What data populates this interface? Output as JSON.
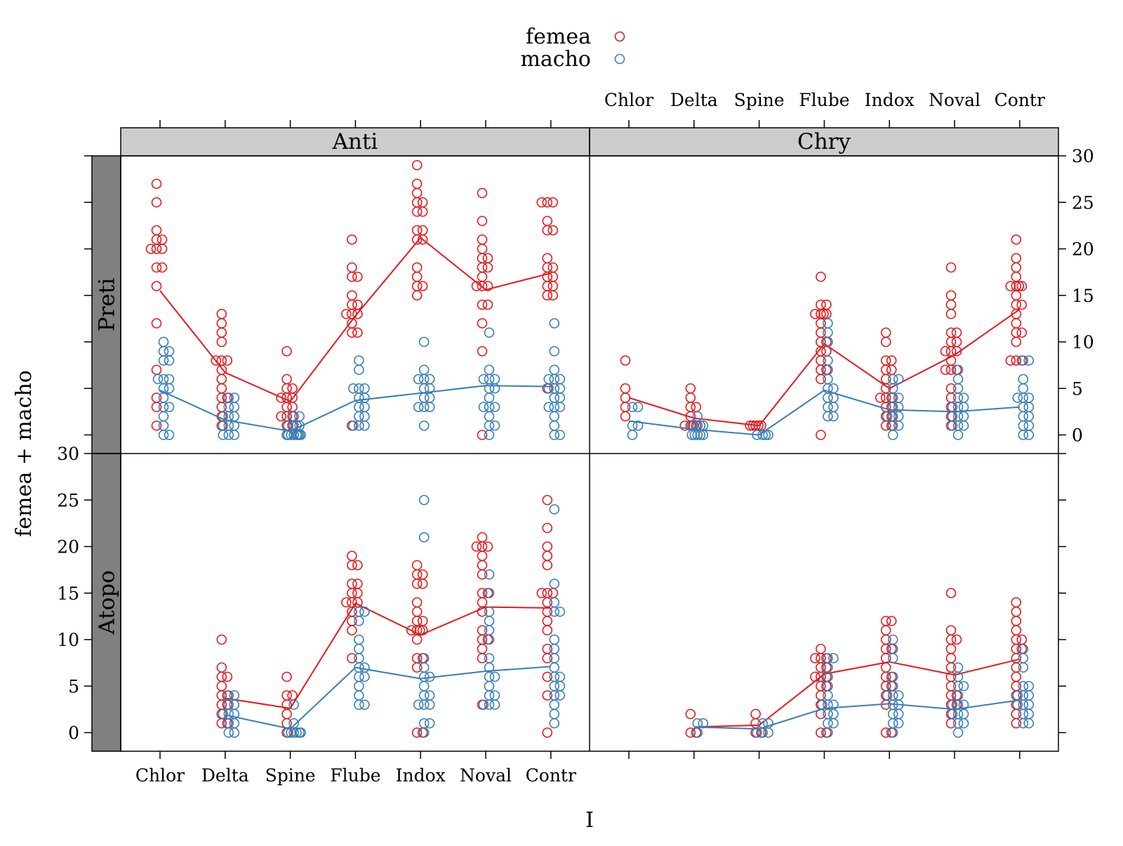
{
  "chart_data": {
    "type": "scatter",
    "xlabel": "I",
    "ylabel": "femea + macho",
    "categories": [
      "Chlor",
      "Delta",
      "Spine",
      "Flube",
      "Indox",
      "Noval",
      "Contr"
    ],
    "ylim": [
      -2,
      30
    ],
    "yticks": [
      0,
      5,
      10,
      15,
      20,
      25,
      30
    ],
    "legend": {
      "placement": "top",
      "entries": [
        {
          "name": "femea",
          "color": "#e31a1c"
        },
        {
          "name": "macho",
          "color": "#377eb8"
        }
      ]
    },
    "strip_colors": {
      "column": "#cccccc",
      "row": "#808080"
    },
    "column_labels": [
      "Anti",
      "Chry"
    ],
    "row_labels": [
      "Preti",
      "Atopo"
    ],
    "panels": [
      {
        "column": "Anti",
        "row": "Preti",
        "series": [
          {
            "name": "femea",
            "mean": [
              15.5,
              6.7,
              3.6,
              12.8,
              21.2,
              15.6,
              17.4
            ],
            "points": [
              [
                25,
                27,
                22,
                21,
                21,
                20,
                20,
                20,
                18,
                18,
                16,
                12,
                7,
                4,
                3,
                1
              ],
              [
                13,
                12,
                11,
                10,
                8,
                8,
                8,
                7,
                6,
                5,
                4,
                4,
                3,
                2,
                1
              ],
              [
                9,
                6,
                5,
                5,
                4,
                4,
                4,
                3,
                3,
                2,
                2,
                2,
                1,
                1,
                0
              ],
              [
                21,
                18,
                17,
                17,
                15,
                14,
                14,
                13,
                13,
                13,
                12,
                11,
                11,
                1
              ],
              [
                29,
                27,
                26,
                25,
                25,
                24,
                24,
                22,
                22,
                21,
                21,
                18,
                17,
                16,
                16,
                15
              ],
              [
                26,
                23,
                21,
                20,
                19,
                19,
                18,
                18,
                17,
                16,
                16,
                16,
                14,
                14,
                12,
                9,
                0
              ],
              [
                25,
                25,
                25,
                23,
                22,
                22,
                19,
                18,
                18,
                17,
                17,
                16,
                16,
                15,
                15,
                5
              ]
            ]
          },
          {
            "name": "macho",
            "mean": [
              4.8,
              1.6,
              0.4,
              3.7,
              4.5,
              5.3,
              5.2
            ],
            "points": [
              [
                10,
                9,
                9,
                8,
                8,
                6,
                6,
                6,
                5,
                5,
                4,
                3,
                3,
                2,
                1,
                0,
                0
              ],
              [
                4,
                4,
                3,
                3,
                2,
                2,
                2,
                1,
                1,
                1,
                0,
                0,
                0
              ],
              [
                2,
                2,
                1,
                1,
                1,
                1,
                0,
                0,
                0,
                0,
                0,
                0,
                0,
                0
              ],
              [
                8,
                7,
                5,
                5,
                5,
                4,
                4,
                3,
                3,
                2,
                2,
                1,
                1,
                1
              ],
              [
                10,
                7,
                6,
                6,
                6,
                5,
                5,
                4,
                4,
                3,
                3,
                3,
                1
              ],
              [
                11,
                7,
                6,
                6,
                6,
                5,
                5,
                4,
                3,
                3,
                3,
                2,
                1,
                1,
                0
              ],
              [
                12,
                9,
                7,
                6,
                6,
                6,
                5,
                5,
                5,
                4,
                4,
                3,
                3,
                3,
                2,
                1,
                0,
                0
              ]
            ]
          }
        ]
      },
      {
        "column": "Chry",
        "row": "Preti",
        "series": [
          {
            "name": "femea",
            "mean": [
              4.0,
              1.8,
              1.0,
              9.8,
              5.0,
              8.6,
              13.5
            ],
            "points": [
              [
                8,
                5,
                4,
                3,
                2
              ],
              [
                5,
                4,
                3,
                3,
                2,
                1,
                1,
                1,
                1
              ],
              [
                1,
                1,
                1,
                1,
                1
              ],
              [
                17,
                14,
                14,
                13,
                13,
                13,
                13,
                12,
                11,
                10,
                10,
                9,
                9,
                8,
                7,
                7,
                6,
                0
              ],
              [
                11,
                10,
                8,
                8,
                7,
                7,
                6,
                5,
                4,
                4,
                4,
                3,
                3,
                2,
                2,
                1,
                1
              ],
              [
                18,
                15,
                14,
                13,
                11,
                11,
                10,
                10,
                9,
                9,
                9,
                8,
                7,
                7,
                7,
                5,
                4,
                3,
                2,
                1
              ],
              [
                21,
                19,
                18,
                17,
                16,
                16,
                16,
                16,
                15,
                14,
                14,
                13,
                12,
                11,
                11,
                10,
                8,
                8,
                8
              ]
            ]
          },
          {
            "name": "macho",
            "mean": [
              1.5,
              0.6,
              0.0,
              4.8,
              2.7,
              2.5,
              3.0
            ],
            "points": [
              [
                3,
                3,
                1,
                1,
                0
              ],
              [
                2,
                1,
                1,
                1,
                1,
                0,
                0,
                0,
                0,
                0
              ],
              [
                0,
                0,
                0,
                0
              ],
              [
                12,
                11,
                10,
                8,
                7,
                6,
                5,
                5,
                4,
                4,
                3,
                3,
                2,
                2
              ],
              [
                6,
                6,
                5,
                4,
                4,
                3,
                3,
                2,
                2,
                2,
                1,
                1,
                0
              ],
              [
                7,
                6,
                5,
                4,
                4,
                3,
                3,
                3,
                2,
                2,
                2,
                1,
                1,
                1,
                0
              ],
              [
                8,
                8,
                6,
                5,
                4,
                4,
                4,
                3,
                3,
                2,
                2,
                1,
                1,
                0,
                0
              ]
            ]
          }
        ]
      },
      {
        "column": "Anti",
        "row": "Atopo",
        "series": [
          {
            "name": "femea",
            "mean": [
              null,
              3.7,
              2.6,
              13.9,
              10.5,
              13.5,
              13.4
            ],
            "points": [
              [],
              [
                10,
                7,
                6,
                6,
                5,
                4,
                4,
                3,
                3,
                2,
                1,
                1
              ],
              [
                6,
                4,
                4,
                3,
                2,
                1,
                0
              ],
              [
                19,
                18,
                18,
                16,
                16,
                15,
                15,
                14,
                14,
                14,
                13,
                12,
                11,
                8
              ],
              [
                18,
                17,
                17,
                16,
                16,
                14,
                13,
                12,
                12,
                11,
                11,
                11,
                11,
                10,
                8,
                8,
                7,
                0,
                0
              ],
              [
                21,
                20,
                20,
                20,
                19,
                18,
                17,
                15,
                15,
                14,
                13,
                11,
                10,
                10,
                9,
                8,
                3
              ],
              [
                25,
                22,
                20,
                19,
                18,
                15,
                15,
                15,
                14,
                13,
                12,
                11,
                9,
                8,
                6,
                4,
                0
              ]
            ]
          },
          {
            "name": "macho",
            "mean": [
              null,
              1.9,
              0.4,
              7.0,
              5.8,
              6.6,
              7.1
            ],
            "points": [
              [],
              [
                4,
                4,
                3,
                3,
                2,
                2,
                2,
                1,
                1,
                0,
                0
              ],
              [
                3,
                1,
                0,
                0,
                0,
                0,
                0,
                0
              ],
              [
                13,
                13,
                12,
                10,
                9,
                8,
                7,
                7,
                6,
                6,
                5,
                4,
                3,
                3
              ],
              [
                25,
                21,
                8,
                7,
                6,
                6,
                5,
                4,
                4,
                3,
                3,
                3,
                1,
                1,
                0
              ],
              [
                17,
                15,
                13,
                12,
                11,
                10,
                8,
                7,
                6,
                6,
                5,
                4,
                4,
                3,
                3,
                3
              ],
              [
                24,
                16,
                14,
                13,
                13,
                10,
                9,
                8,
                7,
                6,
                6,
                5,
                5,
                4,
                4,
                3,
                2,
                1
              ]
            ]
          }
        ]
      },
      {
        "column": "Chry",
        "row": "Atopo",
        "series": [
          {
            "name": "femea",
            "mean": [
              null,
              0.6,
              0.8,
              6.3,
              7.6,
              6.2,
              7.9
            ],
            "points": [
              [],
              [
                2,
                0,
                0
              ],
              [
                2,
                1,
                0,
                0
              ],
              [
                9,
                8,
                8,
                8,
                7,
                7,
                6,
                6,
                6,
                5,
                5,
                4,
                3,
                2,
                0,
                0
              ],
              [
                12,
                12,
                11,
                10,
                9,
                9,
                8,
                7,
                6,
                6,
                5,
                5,
                4,
                3,
                0,
                0
              ],
              [
                15,
                11,
                10,
                10,
                9,
                8,
                7,
                6,
                5,
                4,
                4,
                3,
                3,
                2,
                1
              ],
              [
                14,
                13,
                12,
                11,
                10,
                10,
                9,
                9,
                8,
                7,
                6,
                5,
                4,
                3,
                2,
                1
              ]
            ]
          },
          {
            "name": "macho",
            "mean": [
              null,
              0.6,
              0.4,
              2.6,
              3.1,
              2.5,
              3.5
            ],
            "points": [
              [],
              [
                1,
                1,
                0
              ],
              [
                1,
                1,
                0,
                0,
                0
              ],
              [
                8,
                8,
                7,
                6,
                5,
                4,
                3,
                3,
                3,
                2,
                2,
                1,
                1,
                0
              ],
              [
                10,
                9,
                8,
                6,
                5,
                4,
                4,
                4,
                3,
                3,
                2,
                2,
                1,
                1,
                0
              ],
              [
                7,
                6,
                5,
                5,
                4,
                3,
                3,
                3,
                2,
                2,
                2,
                1,
                1,
                0
              ],
              [
                9,
                8,
                7,
                5,
                5,
                4,
                4,
                4,
                3,
                3,
                3,
                2,
                2,
                1,
                1
              ]
            ]
          }
        ]
      }
    ]
  }
}
